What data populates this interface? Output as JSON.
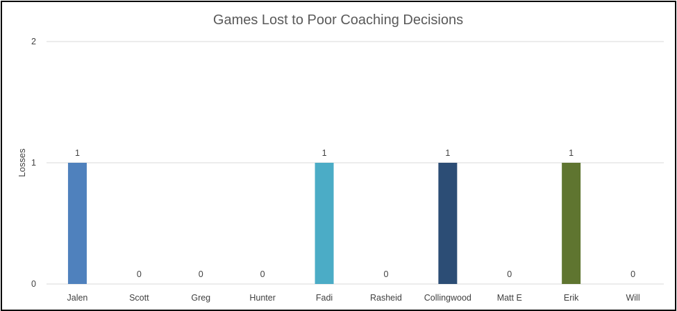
{
  "chart_data": {
    "type": "bar",
    "title": "Games Lost to Poor Coaching Decisions",
    "xlabel": "",
    "ylabel": "Losses",
    "ylim": [
      0,
      2
    ],
    "yticks": [
      0,
      1,
      2
    ],
    "grid": true,
    "legend": "none",
    "categories": [
      "Jalen",
      "Scott",
      "Greg",
      "Hunter",
      "Fadi",
      "Rasheid",
      "Collingwood",
      "Matt E",
      "Erik",
      "Will"
    ],
    "values": [
      1,
      0,
      0,
      0,
      1,
      0,
      1,
      0,
      1,
      0
    ],
    "colors": [
      "#4f81bd",
      "#4f81bd",
      "#4f81bd",
      "#4f81bd",
      "#4bacc6",
      "#4bacc6",
      "#2c4d75",
      "#2c4d75",
      "#5f7530",
      "#5f7530"
    ]
  }
}
